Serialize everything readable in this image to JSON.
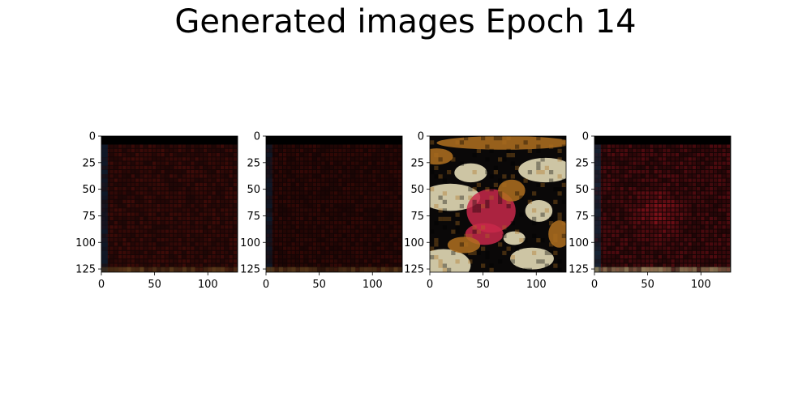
{
  "figure": {
    "title": "Generated images Epoch 14"
  },
  "chart_data": [
    {
      "type": "image",
      "panel": 1,
      "description": "dark reddish grid pattern",
      "xticks": [
        0,
        50,
        100
      ],
      "yticks": [
        0,
        25,
        50,
        75,
        100,
        125
      ],
      "xlim": [
        0,
        128
      ],
      "ylim": [
        128,
        0
      ],
      "style": "dark",
      "colors": {
        "base": "#150505",
        "accent": "#5a0f0a",
        "edge": "#0e1a2a",
        "hi": "#6a4a20"
      }
    },
    {
      "type": "image",
      "panel": 2,
      "description": "dark reddish grid pattern",
      "xticks": [
        0,
        50,
        100
      ],
      "yticks": [
        0,
        25,
        50,
        75,
        100,
        125
      ],
      "xlim": [
        0,
        128
      ],
      "ylim": [
        128,
        0
      ],
      "style": "dark",
      "colors": {
        "base": "#120404",
        "accent": "#4a0c08",
        "edge": "#0e1a2a",
        "hi": "#6a4a20"
      }
    },
    {
      "type": "image",
      "panel": 3,
      "description": "bright blotchy face-like pattern",
      "xticks": [
        0,
        50,
        100
      ],
      "yticks": [
        0,
        25,
        50,
        75,
        100,
        125
      ],
      "xlim": [
        0,
        128
      ],
      "ylim": [
        128,
        0
      ],
      "style": "bright",
      "colors": {
        "base": "#0a0808",
        "accent": "#c8284a",
        "edge": "#f0e6c0",
        "hi": "#b07020"
      }
    },
    {
      "type": "image",
      "panel": 4,
      "description": "dark reddish pattern with faint blob",
      "xticks": [
        0,
        50,
        100
      ],
      "yticks": [
        0,
        25,
        50,
        75,
        100,
        125
      ],
      "xlim": [
        0,
        128
      ],
      "ylim": [
        128,
        0
      ],
      "style": "dark-blob",
      "colors": {
        "base": "#120404",
        "accent": "#7a1018",
        "edge": "#152436",
        "hi": "#b0a070"
      }
    }
  ]
}
